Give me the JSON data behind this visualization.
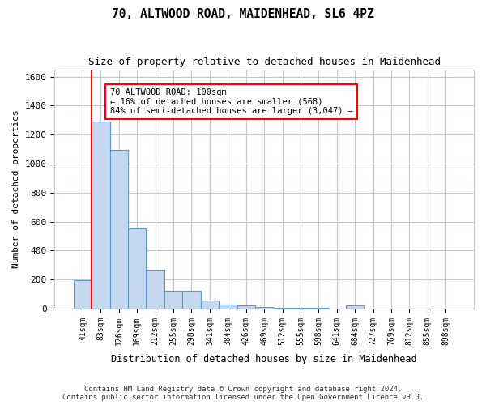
{
  "title1": "70, ALTWOOD ROAD, MAIDENHEAD, SL6 4PZ",
  "title2": "Size of property relative to detached houses in Maidenhead",
  "xlabel": "Distribution of detached houses by size in Maidenhead",
  "ylabel": "Number of detached properties",
  "categories": [
    "41sqm",
    "83sqm",
    "126sqm",
    "169sqm",
    "212sqm",
    "255sqm",
    "298sqm",
    "341sqm",
    "384sqm",
    "426sqm",
    "469sqm",
    "512sqm",
    "555sqm",
    "598sqm",
    "641sqm",
    "684sqm",
    "727sqm",
    "769sqm",
    "812sqm",
    "855sqm",
    "898sqm"
  ],
  "values": [
    195,
    1290,
    1095,
    555,
    265,
    120,
    120,
    55,
    28,
    22,
    12,
    5,
    5,
    3,
    0,
    20,
    0,
    0,
    0,
    0,
    0
  ],
  "bar_color": "#c5d8ef",
  "bar_edge_color": "#5b9bd5",
  "grid_color": "#c0c8d8",
  "annotation_box_text": "70 ALTWOOD ROAD: 100sqm\n← 16% of detached houses are smaller (568)\n84% of semi-detached houses are larger (3,047) →",
  "vline_x": 1,
  "vline_color": "red",
  "ylim": [
    0,
    1650
  ],
  "yticks": [
    0,
    200,
    400,
    600,
    800,
    1000,
    1200,
    1400,
    1600
  ],
  "footnote1": "Contains HM Land Registry data © Crown copyright and database right 2024.",
  "footnote2": "Contains public sector information licensed under the Open Government Licence v3.0.",
  "bg_color": "#ffffff",
  "figsize": [
    6.0,
    5.0
  ],
  "dpi": 100
}
